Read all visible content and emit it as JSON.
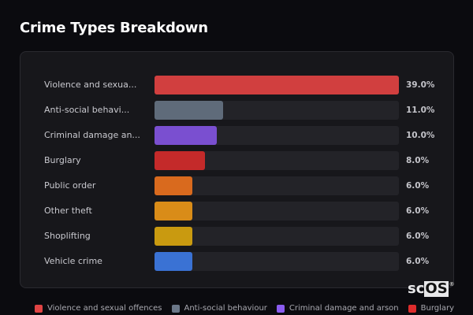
{
  "header": {
    "title": "Crime Types Breakdown"
  },
  "chart_data": {
    "type": "bar",
    "orientation": "horizontal",
    "title": "Crime Types Breakdown",
    "xlabel": "",
    "ylabel": "",
    "xlim": [
      0,
      39
    ],
    "grid": false,
    "legend_position": "bottom",
    "categories": [
      "Violence and sexual offences",
      "Anti-social behaviour",
      "Criminal damage and arson",
      "Burglary",
      "Public order",
      "Other theft",
      "Shoplifting",
      "Vehicle crime"
    ],
    "values": [
      39.0,
      11.0,
      10.0,
      8.0,
      6.0,
      6.0,
      6.0,
      6.0
    ],
    "unit": "%"
  },
  "rows": [
    {
      "label": "Violence and sexua...",
      "value": "39.0%",
      "pct": 39.0,
      "color": "#d13f3f"
    },
    {
      "label": "Anti-social behavi...",
      "value": "11.0%",
      "pct": 11.0,
      "color": "#5f6b7a"
    },
    {
      "label": "Criminal damage an...",
      "value": "10.0%",
      "pct": 10.0,
      "color": "#7a4fd0"
    },
    {
      "label": "Burglary",
      "value": "8.0%",
      "pct": 8.0,
      "color": "#c42a2a"
    },
    {
      "label": "Public order",
      "value": "6.0%",
      "pct": 6.0,
      "color": "#d96a1e"
    },
    {
      "label": "Other theft",
      "value": "6.0%",
      "pct": 6.0,
      "color": "#d98c18"
    },
    {
      "label": "Shoplifting",
      "value": "6.0%",
      "pct": 6.0,
      "color": "#c99a10"
    },
    {
      "label": "Vehicle crime",
      "value": "6.0%",
      "pct": 6.0,
      "color": "#3a72d4"
    }
  ],
  "legend": [
    {
      "label": "Violence and sexual offences",
      "color": "#e04444"
    },
    {
      "label": "Anti-social behaviour",
      "color": "#6b7788"
    },
    {
      "label": "Criminal damage and arson",
      "color": "#8b5cf0"
    },
    {
      "label": "Burglary",
      "color": "#dd2c2c"
    }
  ],
  "watermark": {
    "text_plain": "sc",
    "text_highlight": "OS",
    "mark": "®"
  }
}
